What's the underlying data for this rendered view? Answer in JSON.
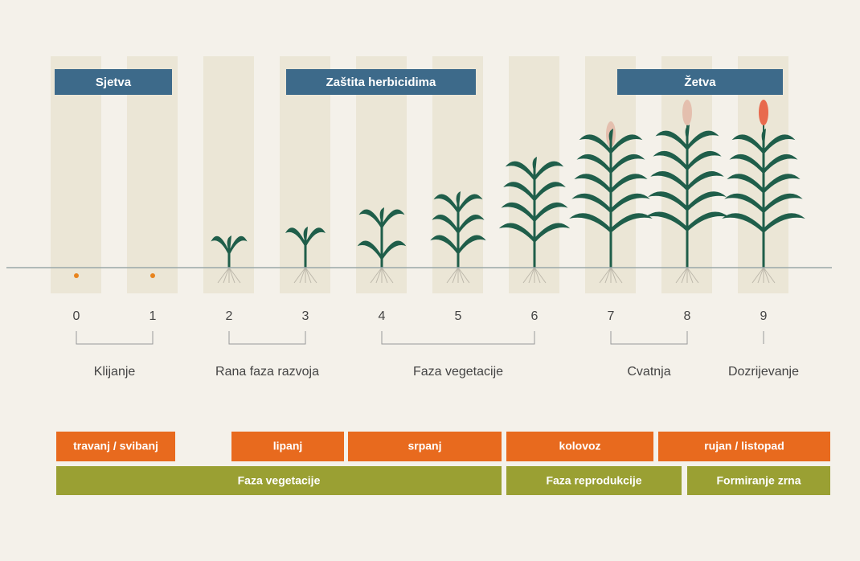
{
  "headers": [
    "Sjetva",
    "Zaštita herbicidima",
    "Žetva"
  ],
  "stages": [
    0,
    1,
    2,
    3,
    4,
    5,
    6,
    7,
    8,
    9
  ],
  "groups": [
    "Klijanje",
    "Rana faza razvoja",
    "Faza vegetacije",
    "Cvatnja",
    "Dozrijevanje"
  ],
  "months": [
    "travanj / svibanj",
    "lipanj",
    "srpanj",
    "kolovoz",
    "rujan / listopad"
  ],
  "phases": [
    "Faza vegetacije",
    "Faza reprodukcije",
    "Formiranje zrna"
  ]
}
